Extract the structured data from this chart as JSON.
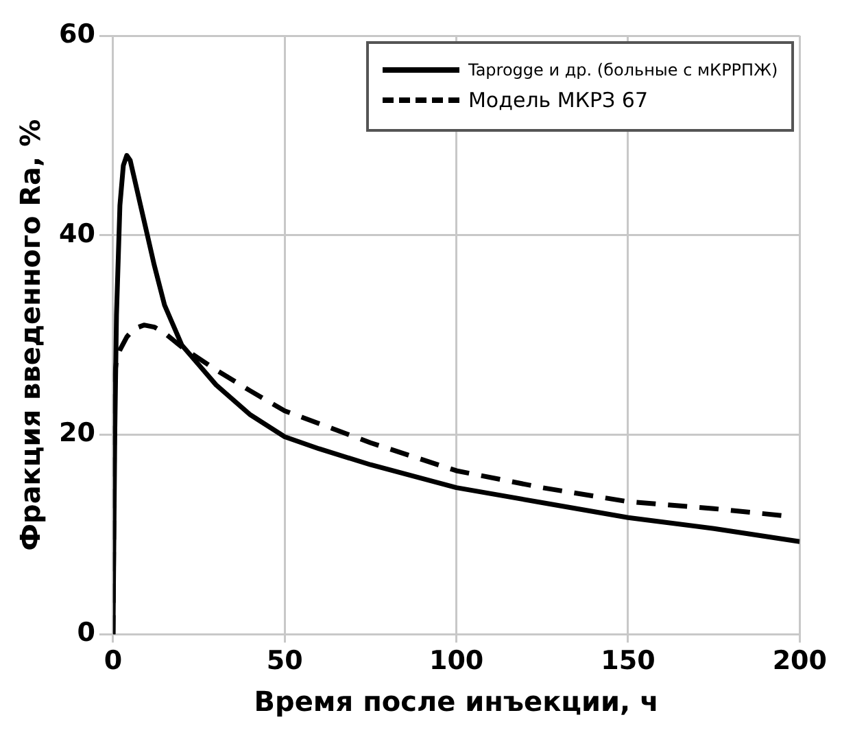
{
  "chart_data": {
    "type": "line",
    "xlabel": "Время после инъекции, ч",
    "ylabel": "Фракция введенного Ra, %",
    "xlim": [
      0,
      200
    ],
    "xticks": [
      0,
      50,
      100,
      150,
      200
    ],
    "ylim": [
      0,
      60
    ],
    "yticks": [
      0,
      20,
      40,
      60
    ],
    "grid": true,
    "legend": "top right",
    "marker": "none",
    "series": [
      {
        "name": "Taprogge и др. (больные с мКРРПЖ)",
        "color": "#000000",
        "line_style": "solid",
        "x": [
          0,
          0.5,
          1,
          2,
          3,
          4,
          5,
          6,
          8,
          10,
          12,
          15,
          20,
          25,
          30,
          40,
          50,
          60,
          75,
          100,
          125,
          150,
          175,
          200
        ],
        "values": [
          0,
          20,
          32,
          43,
          47,
          48,
          47.5,
          46,
          43,
          40,
          37,
          33,
          29,
          27,
          25,
          22,
          19.8,
          18.6,
          17,
          14.7,
          13.2,
          11.7,
          10.6,
          9.3
        ]
      },
      {
        "name": "Модель МКРЗ 67",
        "color": "#000000",
        "line_style": "dashed",
        "x": [
          0,
          0.5,
          1,
          2,
          4,
          6,
          9,
          12,
          15,
          20,
          30,
          40,
          50,
          75,
          100,
          125,
          150,
          175,
          195
        ],
        "values": [
          0,
          26,
          27.5,
          28.5,
          29.8,
          30.6,
          31,
          30.8,
          30.2,
          28.8,
          26.5,
          24.4,
          22.4,
          19.2,
          16.4,
          14.7,
          13.3,
          12.6,
          11.9
        ]
      }
    ]
  }
}
